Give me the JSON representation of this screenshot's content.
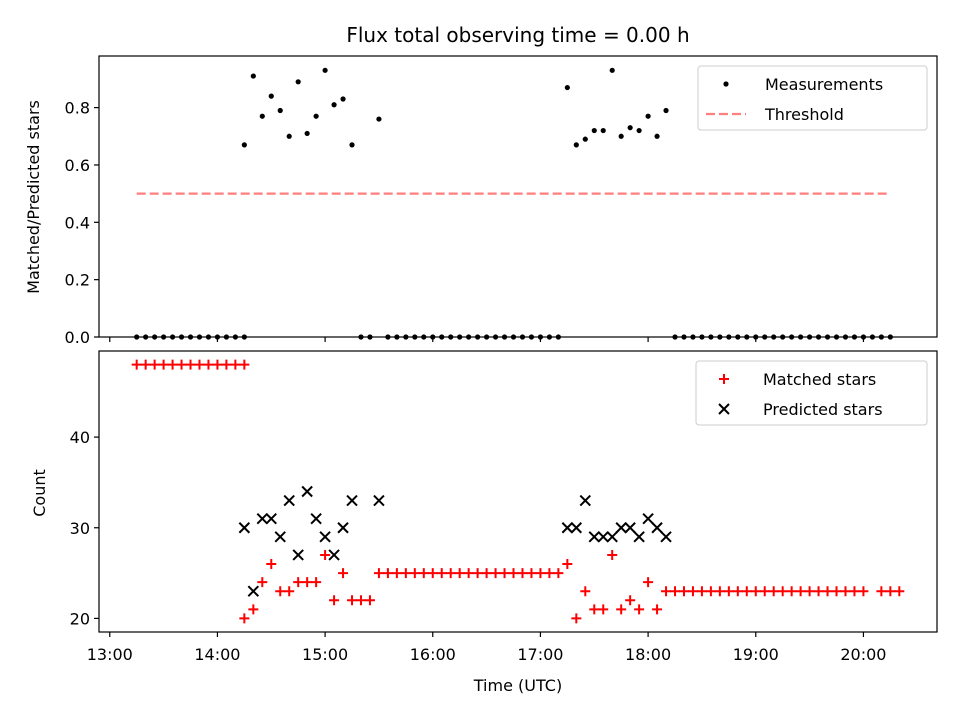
{
  "chart_data": [
    {
      "type": "scatter",
      "title": "Flux total observing time = 0.00 h",
      "xlabel": "",
      "ylabel": "Matched/Predicted stars",
      "xlim": [
        "12:54",
        "20:41"
      ],
      "ylim": [
        0,
        0.98
      ],
      "yticks": [
        0.0,
        0.2,
        0.4,
        0.6,
        0.8
      ],
      "yticklabels": [
        "0.0",
        "0.2",
        "0.4",
        "0.6",
        "0.8"
      ],
      "xticks": [
        "13:00",
        "14:00",
        "15:00",
        "16:00",
        "17:00",
        "18:00",
        "19:00",
        "20:00"
      ],
      "grid": false,
      "legend_position": "top-right",
      "legend": [
        {
          "label": "Measurements",
          "marker": "dot",
          "color": "#000000"
        },
        {
          "label": "Threshold",
          "marker": "dashed-line",
          "color": "#ff7f7f"
        }
      ],
      "series": [
        {
          "name": "Measurements",
          "color": "#000000",
          "points": [
            [
              "13:15",
              0
            ],
            [
              "13:20",
              0
            ],
            [
              "13:25",
              0
            ],
            [
              "13:30",
              0
            ],
            [
              "13:35",
              0
            ],
            [
              "13:40",
              0
            ],
            [
              "13:45",
              0
            ],
            [
              "13:50",
              0
            ],
            [
              "13:55",
              0
            ],
            [
              "14:00",
              0
            ],
            [
              "14:05",
              0
            ],
            [
              "14:10",
              0
            ],
            [
              "14:15",
              0
            ],
            [
              "14:15",
              0.67
            ],
            [
              "14:20",
              0.91
            ],
            [
              "14:25",
              0.77
            ],
            [
              "14:30",
              0.84
            ],
            [
              "14:35",
              0.79
            ],
            [
              "14:40",
              0.7
            ],
            [
              "14:45",
              0.89
            ],
            [
              "14:50",
              0.71
            ],
            [
              "14:55",
              0.77
            ],
            [
              "15:00",
              0.93
            ],
            [
              "15:05",
              0.81
            ],
            [
              "15:10",
              0.83
            ],
            [
              "15:15",
              0.67
            ],
            [
              "15:30",
              0.76
            ],
            [
              "15:20",
              0
            ],
            [
              "15:25",
              0
            ],
            [
              "15:35",
              0
            ],
            [
              "15:40",
              0
            ],
            [
              "15:45",
              0
            ],
            [
              "15:50",
              0
            ],
            [
              "15:55",
              0
            ],
            [
              "16:00",
              0
            ],
            [
              "16:05",
              0
            ],
            [
              "16:10",
              0
            ],
            [
              "16:15",
              0
            ],
            [
              "16:20",
              0
            ],
            [
              "16:25",
              0
            ],
            [
              "16:30",
              0
            ],
            [
              "16:35",
              0
            ],
            [
              "16:40",
              0
            ],
            [
              "16:45",
              0
            ],
            [
              "16:50",
              0
            ],
            [
              "16:55",
              0
            ],
            [
              "17:00",
              0
            ],
            [
              "17:05",
              0
            ],
            [
              "17:10",
              0
            ],
            [
              "17:15",
              0.87
            ],
            [
              "17:20",
              0.67
            ],
            [
              "17:25",
              0.69
            ],
            [
              "17:30",
              0.72
            ],
            [
              "17:35",
              0.72
            ],
            [
              "17:40",
              0.93
            ],
            [
              "17:45",
              0.7
            ],
            [
              "17:50",
              0.73
            ],
            [
              "17:55",
              0.72
            ],
            [
              "18:00",
              0.77
            ],
            [
              "18:05",
              0.7
            ],
            [
              "18:10",
              0.79
            ],
            [
              "18:15",
              0
            ],
            [
              "18:20",
              0
            ],
            [
              "18:25",
              0
            ],
            [
              "18:30",
              0
            ],
            [
              "18:35",
              0
            ],
            [
              "18:40",
              0
            ],
            [
              "18:45",
              0
            ],
            [
              "18:50",
              0
            ],
            [
              "18:55",
              0
            ],
            [
              "19:00",
              0
            ],
            [
              "19:05",
              0
            ],
            [
              "19:10",
              0
            ],
            [
              "19:15",
              0
            ],
            [
              "19:20",
              0
            ],
            [
              "19:25",
              0
            ],
            [
              "19:30",
              0
            ],
            [
              "19:35",
              0
            ],
            [
              "19:40",
              0
            ],
            [
              "19:45",
              0
            ],
            [
              "19:50",
              0
            ],
            [
              "19:55",
              0
            ],
            [
              "20:00",
              0
            ],
            [
              "20:05",
              0
            ],
            [
              "20:10",
              0
            ],
            [
              "20:15",
              0
            ]
          ]
        },
        {
          "name": "Threshold",
          "color": "#ff7f7f",
          "points": [
            [
              "13:15",
              0.5
            ],
            [
              "20:15",
              0.5
            ]
          ]
        }
      ]
    },
    {
      "type": "scatter",
      "title": "",
      "xlabel": "Time (UTC)",
      "ylabel": "Count",
      "xlim": [
        "12:54",
        "20:41"
      ],
      "ylim": [
        18.5,
        49.5
      ],
      "yticks": [
        20,
        30,
        40
      ],
      "yticklabels": [
        "20",
        "30",
        "40"
      ],
      "xticks": [
        "13:00",
        "14:00",
        "15:00",
        "16:00",
        "17:00",
        "18:00",
        "19:00",
        "20:00"
      ],
      "xticklabels": [
        "13:00",
        "14:00",
        "15:00",
        "16:00",
        "17:00",
        "18:00",
        "19:00",
        "20:00"
      ],
      "grid": false,
      "legend_position": "top-right",
      "legend": [
        {
          "label": "Matched stars",
          "marker": "plus",
          "color": "#ff0000"
        },
        {
          "label": "Predicted stars",
          "marker": "x",
          "color": "#000000"
        }
      ],
      "series": [
        {
          "name": "Matched stars",
          "color": "#ff0000",
          "points": [
            [
              "13:15",
              48
            ],
            [
              "13:20",
              48
            ],
            [
              "13:25",
              48
            ],
            [
              "13:30",
              48
            ],
            [
              "13:35",
              48
            ],
            [
              "13:40",
              48
            ],
            [
              "13:45",
              48
            ],
            [
              "13:50",
              48
            ],
            [
              "13:55",
              48
            ],
            [
              "14:00",
              48
            ],
            [
              "14:05",
              48
            ],
            [
              "14:10",
              48
            ],
            [
              "14:15",
              48
            ],
            [
              "14:15",
              20
            ],
            [
              "14:20",
              21
            ],
            [
              "14:25",
              24
            ],
            [
              "14:30",
              26
            ],
            [
              "14:35",
              23
            ],
            [
              "14:40",
              23
            ],
            [
              "14:45",
              24
            ],
            [
              "14:50",
              24
            ],
            [
              "14:55",
              24
            ],
            [
              "15:00",
              27
            ],
            [
              "15:05",
              22
            ],
            [
              "15:10",
              25
            ],
            [
              "15:15",
              22
            ],
            [
              "15:20",
              22
            ],
            [
              "15:25",
              22
            ],
            [
              "15:30",
              25
            ],
            [
              "15:35",
              25
            ],
            [
              "15:40",
              25
            ],
            [
              "15:45",
              25
            ],
            [
              "15:50",
              25
            ],
            [
              "15:55",
              25
            ],
            [
              "16:00",
              25
            ],
            [
              "16:05",
              25
            ],
            [
              "16:10",
              25
            ],
            [
              "16:15",
              25
            ],
            [
              "16:20",
              25
            ],
            [
              "16:25",
              25
            ],
            [
              "16:30",
              25
            ],
            [
              "16:35",
              25
            ],
            [
              "16:40",
              25
            ],
            [
              "16:45",
              25
            ],
            [
              "16:50",
              25
            ],
            [
              "16:55",
              25
            ],
            [
              "17:00",
              25
            ],
            [
              "17:05",
              25
            ],
            [
              "17:10",
              25
            ],
            [
              "17:15",
              26
            ],
            [
              "17:20",
              20
            ],
            [
              "17:25",
              23
            ],
            [
              "17:30",
              21
            ],
            [
              "17:35",
              21
            ],
            [
              "17:40",
              27
            ],
            [
              "17:45",
              21
            ],
            [
              "17:50",
              22
            ],
            [
              "17:55",
              21
            ],
            [
              "18:00",
              24
            ],
            [
              "18:05",
              21
            ],
            [
              "18:10",
              23
            ],
            [
              "18:15",
              23
            ],
            [
              "18:20",
              23
            ],
            [
              "18:25",
              23
            ],
            [
              "18:30",
              23
            ],
            [
              "18:35",
              23
            ],
            [
              "18:40",
              23
            ],
            [
              "18:45",
              23
            ],
            [
              "18:50",
              23
            ],
            [
              "18:55",
              23
            ],
            [
              "19:00",
              23
            ],
            [
              "19:05",
              23
            ],
            [
              "19:10",
              23
            ],
            [
              "19:15",
              23
            ],
            [
              "19:20",
              23
            ],
            [
              "19:25",
              23
            ],
            [
              "19:30",
              23
            ],
            [
              "19:35",
              23
            ],
            [
              "19:40",
              23
            ],
            [
              "19:45",
              23
            ],
            [
              "19:50",
              23
            ],
            [
              "19:55",
              23
            ],
            [
              "20:00",
              23
            ],
            [
              "20:10",
              23
            ],
            [
              "20:15",
              23
            ],
            [
              "20:20",
              23
            ]
          ]
        },
        {
          "name": "Predicted stars",
          "color": "#000000",
          "points": [
            [
              "14:15",
              30
            ],
            [
              "14:20",
              23
            ],
            [
              "14:25",
              31
            ],
            [
              "14:30",
              31
            ],
            [
              "14:35",
              29
            ],
            [
              "14:40",
              33
            ],
            [
              "14:45",
              27
            ],
            [
              "14:50",
              34
            ],
            [
              "14:55",
              31
            ],
            [
              "15:00",
              29
            ],
            [
              "15:05",
              27
            ],
            [
              "15:10",
              30
            ],
            [
              "15:15",
              33
            ],
            [
              "15:30",
              33
            ],
            [
              "17:15",
              30
            ],
            [
              "17:20",
              30
            ],
            [
              "17:25",
              33
            ],
            [
              "17:30",
              29
            ],
            [
              "17:35",
              29
            ],
            [
              "17:40",
              29
            ],
            [
              "17:45",
              30
            ],
            [
              "17:50",
              30
            ],
            [
              "17:55",
              29
            ],
            [
              "18:00",
              31
            ],
            [
              "18:05",
              30
            ],
            [
              "18:10",
              29
            ]
          ]
        }
      ]
    }
  ]
}
